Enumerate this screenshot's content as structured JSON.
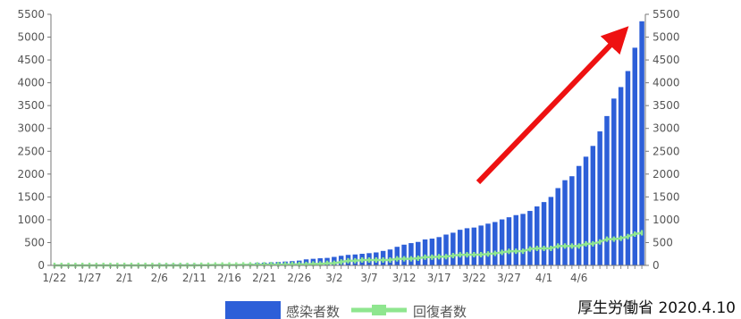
{
  "chart_data": {
    "type": "bar",
    "x_tick_labels": [
      "1/22",
      "1/27",
      "2/1",
      "2/6",
      "2/11",
      "2/16",
      "2/21",
      "2/26",
      "3/2",
      "3/7",
      "3/12",
      "3/17",
      "3/22",
      "3/27",
      "4/1",
      "4/6"
    ],
    "ylim": [
      0,
      5500
    ],
    "y_ticks": [
      0,
      500,
      1000,
      1500,
      2000,
      2500,
      3000,
      3500,
      4000,
      4500,
      5000,
      5500
    ],
    "y_ticks_right": [
      0,
      500,
      1000,
      1500,
      2000,
      2500,
      3000,
      3500,
      4000,
      4500,
      5000,
      5500
    ],
    "series": [
      {
        "name": "感染者数",
        "type": "bar",
        "color": "#2d5fd8",
        "values": [
          2,
          2,
          2,
          2,
          3,
          4,
          4,
          5,
          8,
          11,
          14,
          17,
          20,
          20,
          20,
          25,
          25,
          26,
          26,
          26,
          26,
          26,
          28,
          28,
          29,
          29,
          30,
          33,
          41,
          53,
          59,
          66,
          74,
          84,
          93,
          105,
          132,
          144,
          156,
          164,
          186,
          210,
          230,
          239,
          254,
          268,
          284,
          317,
          348,
          407,
          454,
          488,
          514,
          568,
          587,
          620,
          675,
          716,
          780,
          814,
          829,
          873,
          914,
          950,
          1007,
          1054,
          1101,
          1128,
          1193,
          1291,
          1387,
          1499,
          1693,
          1866,
          1953,
          2178,
          2381,
          2617,
          2935,
          3271,
          3654,
          3906,
          4257,
          4768,
          5347
        ]
      },
      {
        "name": "回復者数",
        "type": "line",
        "color": "#8fe68f",
        "values": [
          0,
          0,
          0,
          0,
          0,
          0,
          0,
          0,
          0,
          1,
          1,
          1,
          1,
          1,
          1,
          1,
          1,
          1,
          1,
          1,
          1,
          4,
          4,
          9,
          9,
          9,
          9,
          12,
          12,
          12,
          15,
          18,
          18,
          18,
          22,
          22,
          22,
          32,
          32,
          46,
          46,
          76,
          101,
          101,
          118,
          118,
          118,
          118,
          118,
          144,
          144,
          144,
          157,
          180,
          180,
          190,
          191,
          215,
          232,
          232,
          235,
          235,
          250,
          263,
          285,
          308,
          310,
          310,
          359,
          372,
          372,
          372,
          424,
          424,
          424,
          424,
          472,
          472,
          514,
          575,
          575,
          592,
          632,
          685,
          714
        ]
      }
    ],
    "legend": {
      "position": "bottom",
      "items": [
        {
          "label": "感染者数",
          "color": "#2d5fd8",
          "marker": "bar"
        },
        {
          "label": "回復者数",
          "color": "#8fe68f",
          "marker": "line"
        }
      ]
    },
    "annotation": {
      "type": "arrow",
      "color": "#ee1111",
      "description": "trend arrow pointing up-right"
    },
    "grid": false
  },
  "source": {
    "text": "厚生労働省 2020.4.10"
  }
}
